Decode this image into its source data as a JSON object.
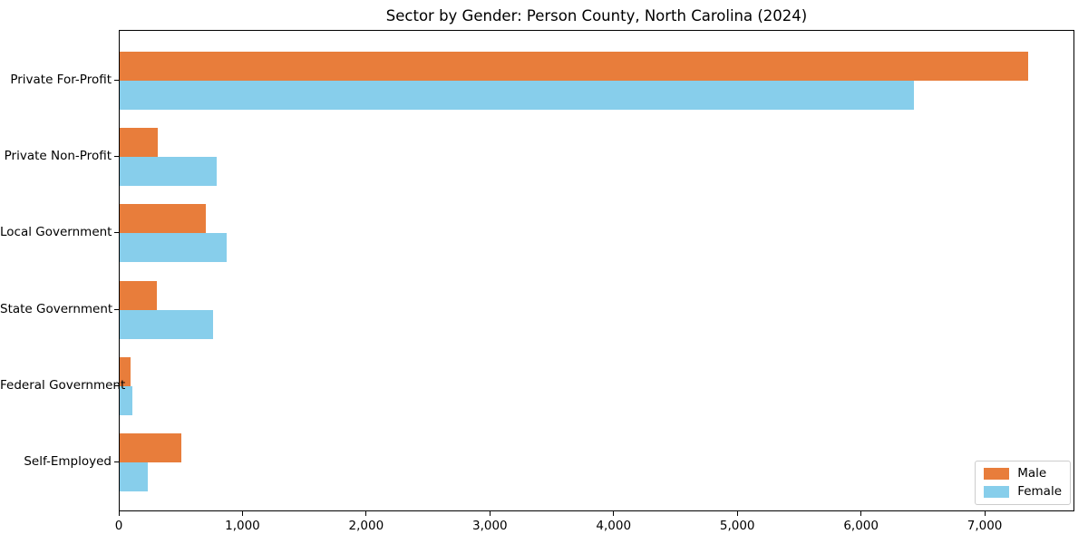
{
  "chart_data": {
    "type": "bar",
    "orientation": "horizontal",
    "title": "Sector by Gender: Person County, North Carolina (2024)",
    "categories": [
      "Private For-Profit",
      "Private Non-Profit",
      "Local Government",
      "State Government",
      "Federal Government",
      "Self-Employed"
    ],
    "series": [
      {
        "name": "Male",
        "color": "#e87d3b",
        "values": [
          7360,
          310,
          700,
          300,
          85,
          500
        ]
      },
      {
        "name": "Female",
        "color": "#87ceeb",
        "values": [
          6430,
          785,
          870,
          760,
          100,
          230
        ]
      }
    ],
    "xlabel": "",
    "ylabel": "",
    "xlim": [
      0,
      7725
    ],
    "xticks": [
      0,
      1000,
      2000,
      3000,
      4000,
      5000,
      6000,
      7000
    ],
    "xtick_labels": [
      "0",
      "1,000",
      "2,000",
      "3,000",
      "4,000",
      "5,000",
      "6,000",
      "7,000"
    ],
    "grid": false,
    "legend": {
      "position": "lower right"
    }
  },
  "colors": {
    "frame": "#000000",
    "legend_border": "#cccccc",
    "background": "#ffffff",
    "text": "#000000"
  }
}
